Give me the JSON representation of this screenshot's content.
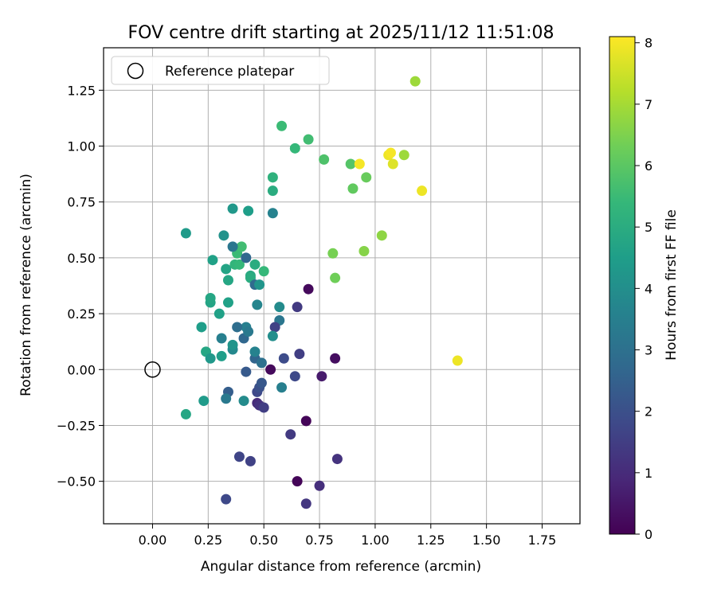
{
  "chart_data": {
    "type": "scatter",
    "title": "FOV centre drift starting at 2025/11/12 11:51:08",
    "xlabel": "Angular distance from reference (arcmin)",
    "ylabel": "Rotation from reference (arcmin)",
    "xlim": [
      -0.22,
      1.92
    ],
    "ylim": [
      -0.69,
      1.44
    ],
    "xticks": [
      "0.00",
      "0.25",
      "0.50",
      "0.75",
      "1.00",
      "1.25",
      "1.50",
      "1.75"
    ],
    "yticks": [
      "−0.50",
      "−0.25",
      "0.00",
      "0.25",
      "0.50",
      "0.75",
      "1.00",
      "1.25"
    ],
    "grid": true,
    "legend_position": "top-left",
    "legend": [
      {
        "label": "Reference platepar",
        "marker": "open-circle"
      }
    ],
    "reference_point": {
      "x": 0.0,
      "y": 0.0
    },
    "colorbar": {
      "label": "Hours from first FF file",
      "range": [
        0,
        8.1
      ],
      "ticks": [
        "0",
        "1",
        "2",
        "3",
        "4",
        "5",
        "6",
        "7",
        "8"
      ],
      "colormap": "viridis"
    },
    "colormap_stops": [
      "#440154",
      "#482878",
      "#3e4989",
      "#31688e",
      "#26828e",
      "#1f9e89",
      "#35b779",
      "#6ece58",
      "#b5de2b",
      "#fde725"
    ],
    "points": [
      {
        "x": 0.65,
        "y": -0.5,
        "t": 0.1
      },
      {
        "x": 0.69,
        "y": -0.6,
        "t": 1.3
      },
      {
        "x": 0.75,
        "y": -0.52,
        "t": 1.1
      },
      {
        "x": 0.83,
        "y": -0.4,
        "t": 1.2
      },
      {
        "x": 0.33,
        "y": -0.58,
        "t": 1.8
      },
      {
        "x": 0.39,
        "y": -0.39,
        "t": 1.7
      },
      {
        "x": 0.44,
        "y": -0.41,
        "t": 1.6
      },
      {
        "x": 0.62,
        "y": -0.29,
        "t": 1.4
      },
      {
        "x": 0.69,
        "y": -0.23,
        "t": 0.1
      },
      {
        "x": 0.47,
        "y": -0.15,
        "t": 1.0
      },
      {
        "x": 0.48,
        "y": -0.16,
        "t": 1.2
      },
      {
        "x": 0.5,
        "y": -0.17,
        "t": 1.5
      },
      {
        "x": 0.47,
        "y": -0.1,
        "t": 1.8
      },
      {
        "x": 0.48,
        "y": -0.08,
        "t": 2.0
      },
      {
        "x": 0.49,
        "y": -0.06,
        "t": 2.2
      },
      {
        "x": 0.42,
        "y": -0.01,
        "t": 2.3
      },
      {
        "x": 0.53,
        "y": 0.0,
        "t": 0.2
      },
      {
        "x": 0.59,
        "y": 0.05,
        "t": 1.9
      },
      {
        "x": 0.64,
        "y": -0.03,
        "t": 1.8
      },
      {
        "x": 0.66,
        "y": 0.07,
        "t": 1.5
      },
      {
        "x": 0.76,
        "y": -0.03,
        "t": 0.6
      },
      {
        "x": 0.82,
        "y": 0.05,
        "t": 0.3
      },
      {
        "x": 0.46,
        "y": 0.05,
        "t": 2.6
      },
      {
        "x": 0.46,
        "y": 0.08,
        "t": 3.6
      },
      {
        "x": 0.49,
        "y": 0.03,
        "t": 3.0
      },
      {
        "x": 0.41,
        "y": 0.14,
        "t": 2.7
      },
      {
        "x": 0.42,
        "y": 0.19,
        "t": 3.5
      },
      {
        "x": 0.43,
        "y": 0.17,
        "t": 3.3
      },
      {
        "x": 0.38,
        "y": 0.19,
        "t": 2.9
      },
      {
        "x": 0.36,
        "y": 0.09,
        "t": 3.8
      },
      {
        "x": 0.36,
        "y": 0.11,
        "t": 4.2
      },
      {
        "x": 0.31,
        "y": 0.14,
        "t": 3.5
      },
      {
        "x": 0.31,
        "y": 0.06,
        "t": 4.5
      },
      {
        "x": 0.24,
        "y": 0.08,
        "t": 4.8
      },
      {
        "x": 0.26,
        "y": 0.05,
        "t": 4.3
      },
      {
        "x": 0.22,
        "y": 0.19,
        "t": 4.5
      },
      {
        "x": 0.3,
        "y": 0.25,
        "t": 4.6
      },
      {
        "x": 0.26,
        "y": 0.3,
        "t": 4.7
      },
      {
        "x": 0.26,
        "y": 0.32,
        "t": 4.8
      },
      {
        "x": 0.34,
        "y": 0.3,
        "t": 4.6
      },
      {
        "x": 0.34,
        "y": 0.4,
        "t": 4.8
      },
      {
        "x": 0.33,
        "y": 0.45,
        "t": 4.7
      },
      {
        "x": 0.37,
        "y": 0.47,
        "t": 5.3
      },
      {
        "x": 0.39,
        "y": 0.47,
        "t": 5.4
      },
      {
        "x": 0.38,
        "y": 0.52,
        "t": 5.5
      },
      {
        "x": 0.4,
        "y": 0.55,
        "t": 5.6
      },
      {
        "x": 0.36,
        "y": 0.55,
        "t": 3.2
      },
      {
        "x": 0.42,
        "y": 0.5,
        "t": 2.7
      },
      {
        "x": 0.44,
        "y": 0.42,
        "t": 4.9
      },
      {
        "x": 0.44,
        "y": 0.41,
        "t": 5.0
      },
      {
        "x": 0.46,
        "y": 0.38,
        "t": 2.8
      },
      {
        "x": 0.48,
        "y": 0.38,
        "t": 4.2
      },
      {
        "x": 0.46,
        "y": 0.47,
        "t": 5.0
      },
      {
        "x": 0.5,
        "y": 0.44,
        "t": 5.4
      },
      {
        "x": 0.32,
        "y": 0.6,
        "t": 4.1
      },
      {
        "x": 0.27,
        "y": 0.49,
        "t": 4.6
      },
      {
        "x": 0.15,
        "y": 0.61,
        "t": 4.4
      },
      {
        "x": 0.36,
        "y": 0.72,
        "t": 4.3
      },
      {
        "x": 0.43,
        "y": 0.71,
        "t": 4.5
      },
      {
        "x": 0.54,
        "y": 0.7,
        "t": 3.6
      },
      {
        "x": 0.54,
        "y": 0.8,
        "t": 5.0
      },
      {
        "x": 0.54,
        "y": 0.86,
        "t": 5.2
      },
      {
        "x": 0.47,
        "y": 0.29,
        "t": 3.7
      },
      {
        "x": 0.57,
        "y": 0.28,
        "t": 3.9
      },
      {
        "x": 0.57,
        "y": 0.22,
        "t": 3.2
      },
      {
        "x": 0.55,
        "y": 0.19,
        "t": 1.6
      },
      {
        "x": 0.54,
        "y": 0.15,
        "t": 4.0
      },
      {
        "x": 0.65,
        "y": 0.28,
        "t": 1.4
      },
      {
        "x": 0.7,
        "y": 0.36,
        "t": 0.2
      },
      {
        "x": 0.58,
        "y": -0.08,
        "t": 3.5
      },
      {
        "x": 0.34,
        "y": -0.1,
        "t": 2.4
      },
      {
        "x": 0.41,
        "y": -0.14,
        "t": 3.9
      },
      {
        "x": 0.33,
        "y": -0.13,
        "t": 3.3
      },
      {
        "x": 0.23,
        "y": -0.14,
        "t": 4.4
      },
      {
        "x": 0.15,
        "y": -0.2,
        "t": 4.8
      },
      {
        "x": 0.58,
        "y": 1.09,
        "t": 5.5
      },
      {
        "x": 0.64,
        "y": 0.99,
        "t": 5.4
      },
      {
        "x": 0.7,
        "y": 1.03,
        "t": 5.6
      },
      {
        "x": 0.77,
        "y": 0.94,
        "t": 5.8
      },
      {
        "x": 0.89,
        "y": 0.92,
        "t": 5.9
      },
      {
        "x": 0.9,
        "y": 0.81,
        "t": 6.1
      },
      {
        "x": 0.96,
        "y": 0.86,
        "t": 6.2
      },
      {
        "x": 0.81,
        "y": 0.52,
        "t": 6.4
      },
      {
        "x": 0.82,
        "y": 0.41,
        "t": 6.3
      },
      {
        "x": 0.95,
        "y": 0.53,
        "t": 6.6
      },
      {
        "x": 1.03,
        "y": 0.6,
        "t": 6.7
      },
      {
        "x": 1.13,
        "y": 0.96,
        "t": 6.9
      },
      {
        "x": 1.18,
        "y": 1.29,
        "t": 6.9
      },
      {
        "x": 0.93,
        "y": 0.92,
        "t": 8.0
      },
      {
        "x": 1.06,
        "y": 0.96,
        "t": 7.9
      },
      {
        "x": 1.07,
        "y": 0.97,
        "t": 8.0
      },
      {
        "x": 1.08,
        "y": 0.92,
        "t": 7.7
      },
      {
        "x": 1.21,
        "y": 0.8,
        "t": 7.9
      },
      {
        "x": 1.37,
        "y": 0.04,
        "t": 7.9
      }
    ]
  }
}
